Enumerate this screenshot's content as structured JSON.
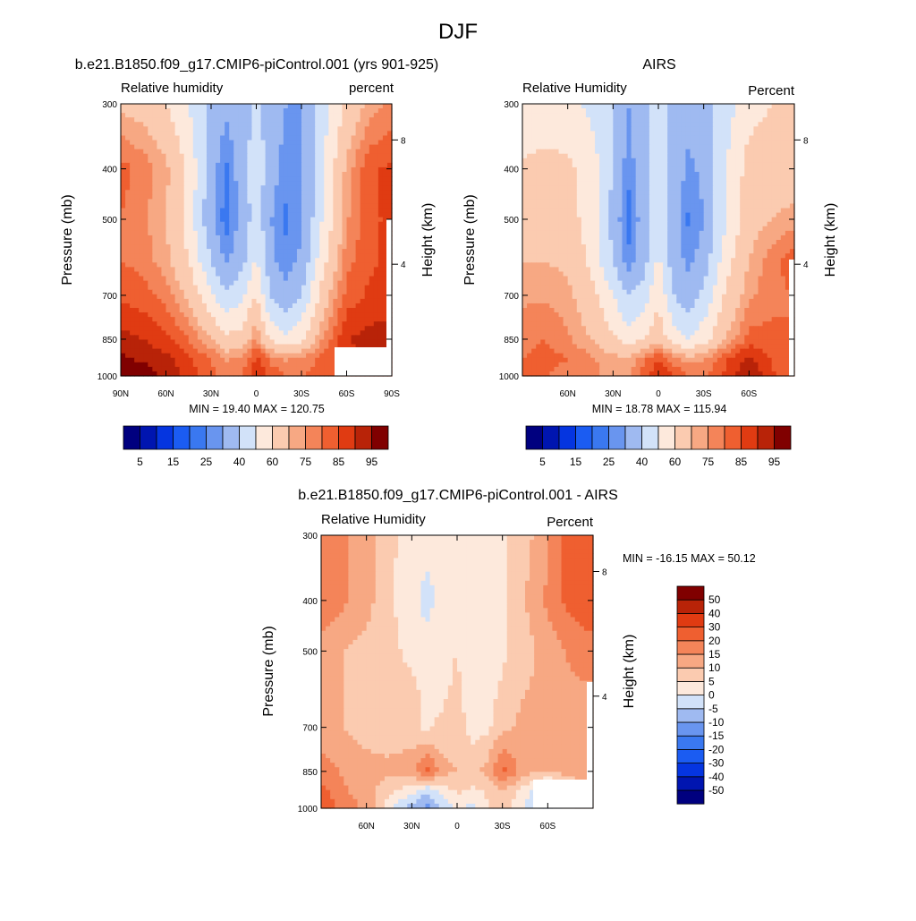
{
  "figure": {
    "title": "DJF"
  },
  "palette": {
    "levels_abs": [
      5,
      10,
      15,
      20,
      25,
      30,
      40,
      50,
      60,
      70,
      75,
      80,
      85,
      90,
      95
    ],
    "colors_abs": [
      "#00007f",
      "#0015b0",
      "#0535e0",
      "#1b5cf2",
      "#3a78f0",
      "#6995ef",
      "#9fbaf1",
      "#d2e2f9",
      "#fde9dc",
      "#fbcbb0",
      "#f7a883",
      "#f48459",
      "#ef5f30",
      "#e03b12",
      "#b82308",
      "#800000"
    ],
    "levels_diff": [
      -50,
      -40,
      -30,
      -20,
      -15,
      -10,
      -5,
      0,
      5,
      10,
      15,
      20,
      30,
      40,
      50
    ],
    "colors_diff": [
      "#00007f",
      "#0015b0",
      "#0535e0",
      "#1b5cf2",
      "#3a78f0",
      "#6995ef",
      "#9fbaf1",
      "#d2e2f9",
      "#fde9dc",
      "#fbcbb0",
      "#f7a883",
      "#f48459",
      "#ef5f30",
      "#e03b12",
      "#b82308",
      "#800000"
    ]
  },
  "panels": [
    {
      "title": "b.e21.B1850.f09_g17.CMIP6-piControl.001 (yrs 901-925)",
      "left_label": "Relative humidity",
      "right_label": "percent",
      "y_label": "Pressure (mb)",
      "y2_label": "Height (km)",
      "y_ticks": [
        "300",
        "400",
        "500",
        "700",
        "850",
        "1000"
      ],
      "y2_ticks": [
        "8",
        "4"
      ],
      "x_ticks": [
        "90N",
        "60N",
        "30N",
        "0",
        "30S",
        "60S",
        "90S"
      ],
      "stats": "MIN =  19.40  MAX = 120.75",
      "colorbar_labels": [
        "5",
        "15",
        "25",
        "40",
        "60",
        "75",
        "85",
        "95"
      ]
    },
    {
      "title": "AIRS",
      "left_label": "Relative Humidity",
      "right_label": "Percent",
      "y_label": "Pressure (mb)",
      "y2_label": "Height (km)",
      "y_ticks": [
        "300",
        "400",
        "500",
        "700",
        "850",
        "1000"
      ],
      "y2_ticks": [
        "8",
        "4"
      ],
      "x_ticks": [
        "60N",
        "30N",
        "0",
        "30S",
        "60S"
      ],
      "stats": "MIN =  18.78  MAX = 115.94",
      "colorbar_labels": [
        "5",
        "15",
        "25",
        "40",
        "60",
        "75",
        "85",
        "95"
      ]
    },
    {
      "title": "b.e21.B1850.f09_g17.CMIP6-piControl.001 - AIRS",
      "left_label": "Relative Humidity",
      "right_label": "Percent",
      "y_label": "Pressure (mb)",
      "y2_label": "Height (km)",
      "y_ticks": [
        "300",
        "400",
        "500",
        "700",
        "850",
        "1000"
      ],
      "y2_ticks": [
        "8",
        "4"
      ],
      "x_ticks": [
        "60N",
        "30N",
        "0",
        "30S",
        "60S"
      ],
      "stats": "MIN = -16.15  MAX =  50.12",
      "colorbar_labels": [
        "50",
        "40",
        "30",
        "20",
        "15",
        "10",
        "5",
        "0",
        "-5",
        "-10",
        "-15",
        "-20",
        "-30",
        "-40",
        "-50"
      ]
    }
  ],
  "chart_data": [
    {
      "type": "heatmap",
      "title": "b.e21.B1850.f09_g17.CMIP6-piControl.001 (yrs 901-925)",
      "subtitle_left": "Relative humidity",
      "subtitle_right": "percent",
      "xlabel": "",
      "ylabel": "Pressure (mb)",
      "y2label": "Height (km)",
      "x_ticks": [
        "90N",
        "60N",
        "30N",
        "0",
        "30S",
        "60S",
        "90S"
      ],
      "y_ticks": [
        300,
        400,
        500,
        700,
        850,
        1000
      ],
      "y_scale": "log",
      "xlim": [
        "90N",
        "90S"
      ],
      "ylim": [
        1000,
        300
      ],
      "min": 19.4,
      "max": 120.75,
      "lat": [
        90,
        75,
        60,
        45,
        30,
        20,
        10,
        0,
        -10,
        -20,
        -30,
        -45,
        -60,
        -75,
        -90
      ],
      "pressure": [
        300,
        400,
        500,
        600,
        700,
        850,
        925,
        1000
      ],
      "values": [
        [
          68,
          66,
          60,
          50,
          38,
          32,
          36,
          42,
          36,
          30,
          30,
          46,
          62,
          72,
          76
        ],
        [
          82,
          78,
          72,
          58,
          34,
          24,
          34,
          46,
          34,
          26,
          28,
          50,
          72,
          84,
          86
        ],
        [
          80,
          76,
          70,
          56,
          32,
          22,
          32,
          46,
          30,
          24,
          28,
          52,
          74,
          84,
          86
        ],
        [
          80,
          78,
          72,
          60,
          40,
          28,
          36,
          52,
          32,
          26,
          32,
          58,
          78,
          84,
          86
        ],
        [
          84,
          82,
          78,
          68,
          52,
          42,
          48,
          60,
          38,
          32,
          40,
          66,
          82,
          86,
          88
        ],
        [
          92,
          90,
          86,
          80,
          70,
          62,
          64,
          76,
          58,
          52,
          58,
          76,
          90,
          92,
          92
        ],
        [
          96,
          94,
          92,
          86,
          80,
          74,
          76,
          86,
          78,
          74,
          76,
          82,
          88,
          90,
          90
        ],
        [
          100,
          98,
          94,
          88,
          82,
          78,
          80,
          90,
          84,
          80,
          80,
          82,
          84,
          86,
          86
        ]
      ],
      "colorbar_labels": [
        5,
        15,
        25,
        40,
        60,
        75,
        85,
        95
      ]
    },
    {
      "type": "heatmap",
      "title": "AIRS",
      "subtitle_left": "Relative Humidity",
      "subtitle_right": "Percent",
      "ylabel": "Pressure (mb)",
      "y2label": "Height (km)",
      "x_ticks": [
        "60N",
        "30N",
        "0",
        "30S",
        "60S"
      ],
      "y_ticks": [
        300,
        400,
        500,
        700,
        850,
        1000
      ],
      "y_scale": "log",
      "ylim": [
        1000,
        300
      ],
      "min": 18.78,
      "max": 115.94,
      "lat": [
        90,
        75,
        60,
        45,
        30,
        20,
        10,
        0,
        -10,
        -20,
        -30,
        -45,
        -60,
        -75,
        -90
      ],
      "pressure": [
        300,
        400,
        500,
        600,
        700,
        850,
        925,
        1000
      ],
      "values": [
        [
          50,
          52,
          52,
          48,
          40,
          30,
          36,
          46,
          38,
          34,
          36,
          46,
          56,
          60,
          62
        ],
        [
          62,
          64,
          62,
          56,
          40,
          26,
          36,
          48,
          36,
          28,
          32,
          50,
          64,
          66,
          66
        ],
        [
          66,
          68,
          64,
          56,
          36,
          22,
          34,
          48,
          34,
          24,
          30,
          50,
          66,
          70,
          72
        ],
        [
          70,
          70,
          68,
          58,
          40,
          26,
          36,
          52,
          34,
          28,
          34,
          56,
          70,
          78,
          84
        ],
        [
          74,
          74,
          72,
          64,
          50,
          40,
          44,
          58,
          40,
          34,
          42,
          62,
          74,
          78,
          80
        ],
        [
          78,
          80,
          76,
          70,
          62,
          54,
          60,
          68,
          54,
          50,
          56,
          70,
          82,
          82,
          80
        ],
        [
          80,
          82,
          80,
          76,
          72,
          70,
          78,
          84,
          76,
          72,
          74,
          84,
          92,
          84,
          80
        ],
        [
          82,
          80,
          78,
          76,
          74,
          74,
          84,
          90,
          86,
          80,
          80,
          86,
          96,
          86,
          82
        ]
      ],
      "colorbar_labels": [
        5,
        15,
        25,
        40,
        60,
        75,
        85,
        95
      ]
    },
    {
      "type": "heatmap",
      "title": "b.e21.B1850.f09_g17.CMIP6-piControl.001 - AIRS",
      "subtitle_left": "Relative Humidity",
      "subtitle_right": "Percent",
      "ylabel": "Pressure (mb)",
      "y2label": "Height (km)",
      "x_ticks": [
        "60N",
        "30N",
        "0",
        "30S",
        "60S"
      ],
      "y_ticks": [
        300,
        400,
        500,
        700,
        850,
        1000
      ],
      "y_scale": "log",
      "ylim": [
        1000,
        300
      ],
      "min": -16.15,
      "max": 50.12,
      "lat": [
        90,
        75,
        60,
        45,
        30,
        20,
        10,
        0,
        -10,
        -20,
        -30,
        -45,
        -60,
        -75,
        -90
      ],
      "pressure": [
        300,
        400,
        500,
        600,
        700,
        850,
        925,
        1000
      ],
      "values": [
        [
          18,
          16,
          12,
          6,
          3,
          2,
          2,
          3,
          3,
          2,
          4,
          8,
          14,
          24,
          28
        ],
        [
          20,
          16,
          12,
          6,
          2,
          -2,
          2,
          4,
          2,
          2,
          4,
          10,
          16,
          22,
          24
        ],
        [
          12,
          10,
          8,
          6,
          4,
          2,
          4,
          5,
          2,
          2,
          4,
          8,
          12,
          16,
          18
        ],
        [
          10,
          10,
          8,
          6,
          6,
          4,
          4,
          6,
          2,
          3,
          6,
          10,
          12,
          14,
          14
        ],
        [
          12,
          10,
          8,
          6,
          6,
          4,
          6,
          8,
          3,
          4,
          8,
          12,
          12,
          12,
          12
        ],
        [
          18,
          14,
          12,
          12,
          14,
          22,
          12,
          10,
          8,
          12,
          22,
          12,
          10,
          12,
          14
        ],
        [
          22,
          16,
          12,
          6,
          2,
          -4,
          2,
          6,
          4,
          6,
          10,
          2,
          -6,
          6,
          10
        ],
        [
          24,
          18,
          14,
          2,
          -8,
          -12,
          -4,
          2,
          -2,
          4,
          8,
          0,
          -8,
          4,
          8
        ]
      ],
      "colorbar_labels": [
        50,
        40,
        30,
        20,
        15,
        10,
        5,
        0,
        -5,
        -10,
        -15,
        -20,
        -30,
        -40,
        -50
      ]
    }
  ]
}
